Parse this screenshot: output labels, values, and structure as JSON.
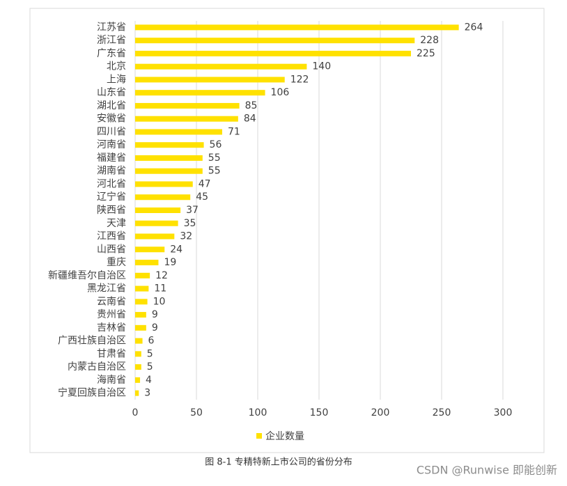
{
  "chart_data": {
    "type": "bar",
    "orientation": "horizontal",
    "categories": [
      "江苏省",
      "浙江省",
      "广东省",
      "北京",
      "上海",
      "山东省",
      "湖北省",
      "安徽省",
      "四川省",
      "河南省",
      "福建省",
      "湖南省",
      "河北省",
      "辽宁省",
      "陕西省",
      "天津",
      "江西省",
      "山西省",
      "重庆",
      "新疆维吾尔自治区",
      "黑龙江省",
      "云南省",
      "贵州省",
      "吉林省",
      "广西壮族自治区",
      "甘肃省",
      "内蒙古自治区",
      "海南省",
      "宁夏回族自治区"
    ],
    "series": [
      {
        "name": "企业数量",
        "color": "#ffe100",
        "values": [
          264,
          228,
          225,
          140,
          122,
          106,
          85,
          84,
          71,
          56,
          55,
          55,
          47,
          45,
          37,
          35,
          32,
          24,
          19,
          12,
          11,
          10,
          9,
          9,
          6,
          5,
          5,
          4,
          3
        ]
      }
    ],
    "xlim": [
      0,
      300
    ],
    "xticks": [
      0,
      50,
      100,
      150,
      200,
      250,
      300
    ],
    "grid": true,
    "legend": "bottom",
    "caption": "图 8-1 专精特新上市公司的省份分布"
  },
  "watermark": "CSDN @Runwise 即能创新"
}
